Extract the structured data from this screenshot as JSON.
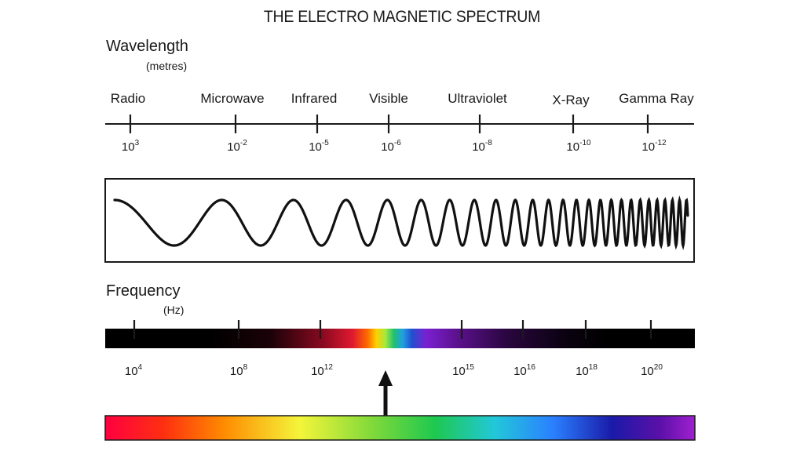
{
  "title": "THE ELECTRO MAGNETIC SPECTRUM",
  "wavelength": {
    "heading": "Wavelength",
    "unit": "(metres)",
    "bands": [
      "Radio",
      "Microwave",
      "Infrared",
      "Visible",
      "Ultraviolet",
      "X-Ray",
      "Gamma Ray"
    ],
    "ticks": [
      {
        "base": "10",
        "exp": "3"
      },
      {
        "base": "10",
        "exp": "-2"
      },
      {
        "base": "10",
        "exp": "-5"
      },
      {
        "base": "10",
        "exp": "-6"
      },
      {
        "base": "10",
        "exp": "-8"
      },
      {
        "base": "10",
        "exp": "-10"
      },
      {
        "base": "10",
        "exp": "-12"
      }
    ]
  },
  "frequency": {
    "heading": "Frequency",
    "unit": "(Hz)",
    "ticks": [
      {
        "base": "10",
        "exp": "4"
      },
      {
        "base": "10",
        "exp": "8"
      },
      {
        "base": "10",
        "exp": "12"
      },
      {
        "base": "10",
        "exp": "15"
      },
      {
        "base": "10",
        "exp": "16"
      },
      {
        "base": "10",
        "exp": "18"
      },
      {
        "base": "10",
        "exp": "20"
      }
    ]
  },
  "colors": {
    "line": "#1a1a1a",
    "bar_dark": "#000000",
    "visible_spectrum": [
      "#ff0040",
      "#ff5a00",
      "#ffc000",
      "#f4f53a",
      "#2fd23a",
      "#00c8c8",
      "#2aa0ff",
      "#1a1aa8",
      "#6a0aa8",
      "#a020d0"
    ]
  },
  "icons": {
    "pointer": "up-arrow-icon",
    "wave": "sine-wave-icon"
  }
}
